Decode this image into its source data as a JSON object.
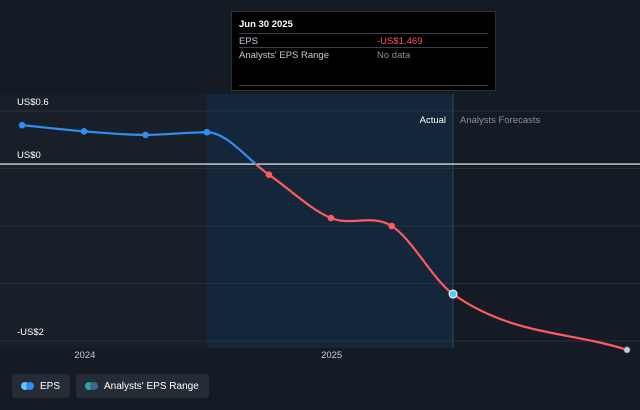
{
  "tooltip": {
    "date": "Jun 30 2025",
    "rows": [
      {
        "label": "EPS",
        "value": "-US$1.469"
      },
      {
        "label": "Analysts' EPS Range",
        "value": "No data"
      }
    ]
  },
  "legend": [
    {
      "label": "EPS",
      "colors": [
        "#5ac8fa",
        "#2e8ff0"
      ]
    },
    {
      "label": "Analysts' EPS Range",
      "colors": [
        "#2aa4a4",
        "#3a6a8e"
      ]
    }
  ],
  "chart_data": {
    "type": "line",
    "x_domain": [
      "2023-09-15",
      "2026-03-15"
    ],
    "y_domain": [
      -2.0,
      0.6
    ],
    "y_ticks": [
      {
        "value": 0.6,
        "label": "US$0.6"
      },
      {
        "value": 0,
        "label": "US$0"
      },
      {
        "value": -2.0,
        "label": "-US$2"
      }
    ],
    "x_ticks": [
      {
        "date": "2024-01-01",
        "label": "2024"
      },
      {
        "date": "2025-01-01",
        "label": "2025"
      }
    ],
    "actual_label": "Actual",
    "forecast_label": "Analysts Forecasts",
    "highlight_start": "2024-06-30",
    "divider_date": "2025-06-30",
    "colors": {
      "positive": "#2e8ff0",
      "negative": "#ff5a5f",
      "zero_line": "#ffffff"
    },
    "series": [
      {
        "name": "EPS",
        "points": [
          {
            "date": "2023-09-30",
            "value": 0.44
          },
          {
            "date": "2023-12-31",
            "value": 0.37
          },
          {
            "date": "2024-03-31",
            "value": 0.33
          },
          {
            "date": "2024-06-30",
            "value": 0.36
          },
          {
            "date": "2024-09-30",
            "value": -0.12
          },
          {
            "date": "2024-12-31",
            "value": -0.61
          },
          {
            "date": "2025-03-31",
            "value": -0.7
          },
          {
            "date": "2025-06-30",
            "value": -1.469
          },
          {
            "date": "2026-03-15",
            "value": -2.1
          }
        ]
      }
    ]
  }
}
